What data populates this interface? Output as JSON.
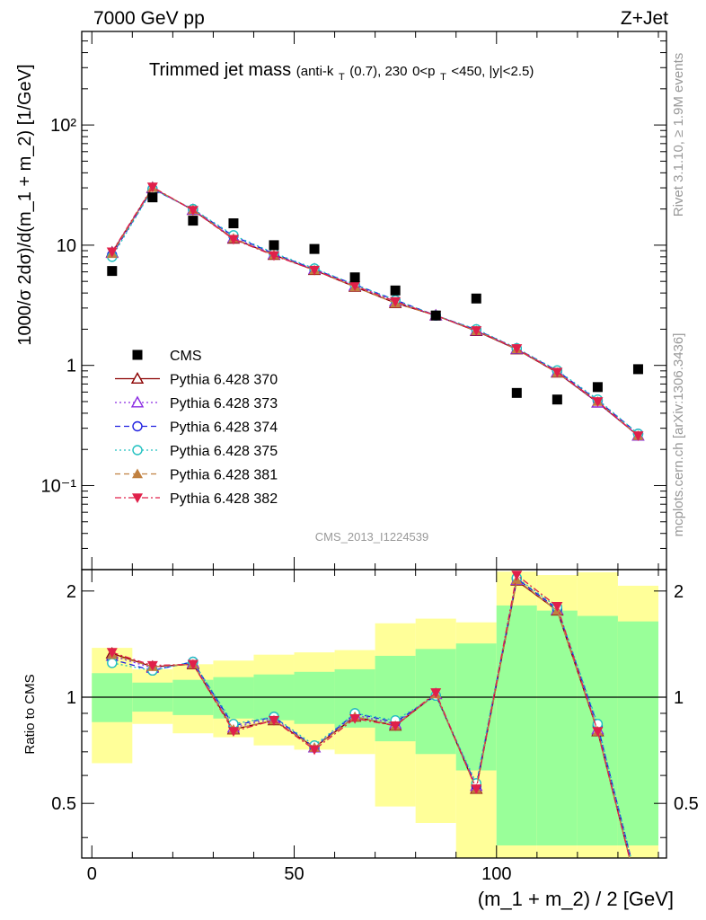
{
  "header": {
    "left": "7000 GeV pp",
    "right": "Z+Jet"
  },
  "top_panel": {
    "title_main": "Trimmed jet mass",
    "title_sub_pre": "(anti-k",
    "title_sub_sub1": "T",
    "title_sub_mid": "(0.7), 230",
    "title_sub_mid2": "0<p",
    "title_sub_sub2": "T",
    "title_sub_post": "<450, |y|<2.5)",
    "ylabel": "1000/σ 2dσ)/d(m_1 + m_2) [1/GeV]",
    "analysis_id": "CMS_2013_I1224539"
  },
  "side_labels": {
    "rivet": "Rivet 3.1.10, ≥ 1.9M events",
    "mcplots": "mcplots.cern.ch [arXiv:1306.3436]"
  },
  "ratio_panel": {
    "ylabel": "Ratio to CMS"
  },
  "x_axis": {
    "label": "(m_1 + m_2) / 2 [GeV]"
  },
  "chart_data": [
    {
      "type": "scatter",
      "log_y": true,
      "ylim": [
        0.02,
        600
      ],
      "xlim": [
        -2.5,
        142
      ],
      "x_ticks": [
        0,
        50,
        100
      ],
      "y_ticks": [
        {
          "value": 0.1,
          "label": "10⁻¹"
        },
        {
          "value": 1,
          "label": "1"
        },
        {
          "value": 10,
          "label": "10"
        },
        {
          "value": 100,
          "label": "10²"
        }
      ],
      "x": [
        5,
        15,
        25,
        35,
        45,
        55,
        65,
        75,
        85,
        95,
        105,
        115,
        125,
        135
      ],
      "legend_position": "bottom-left",
      "series": [
        {
          "name": "CMS",
          "marker": "square",
          "line": "none",
          "color": "#000000",
          "values": [
            6.1,
            25.0,
            16.0,
            15.2,
            10.0,
            9.3,
            5.4,
            4.2,
            2.6,
            3.6,
            0.59,
            0.52,
            0.66,
            0.93
          ]
        },
        {
          "name": "Pythia 6.428 370",
          "marker": "triangle-open",
          "line": "solid",
          "color": "#8b0000",
          "values": [
            8.7,
            30.0,
            19.6,
            11.3,
            8.3,
            6.2,
            4.5,
            3.3,
            2.6,
            1.93,
            1.36,
            0.87,
            0.49,
            0.26
          ]
        },
        {
          "name": "Pythia 6.428 373",
          "marker": "triangle-open",
          "line": "dotted",
          "color": "#8a2be2",
          "values": [
            8.6,
            29.7,
            19.7,
            11.5,
            8.4,
            6.3,
            4.6,
            3.4,
            2.6,
            1.95,
            1.37,
            0.88,
            0.49,
            0.26
          ]
        },
        {
          "name": "Pythia 6.428 374",
          "marker": "circle-open",
          "line": "dashed",
          "color": "#2020e0",
          "values": [
            8.3,
            29.4,
            19.8,
            11.9,
            8.5,
            6.3,
            4.7,
            3.5,
            2.6,
            1.98,
            1.38,
            0.9,
            0.51,
            0.27
          ]
        },
        {
          "name": "Pythia 6.428 375",
          "marker": "circle-open",
          "line": "dotted",
          "color": "#20c0c0",
          "values": [
            8.0,
            29.2,
            20.0,
            12.1,
            8.6,
            6.4,
            4.7,
            3.5,
            2.6,
            2.0,
            1.39,
            0.91,
            0.52,
            0.27
          ]
        },
        {
          "name": "Pythia 6.428 381",
          "marker": "triangle-filled",
          "line": "dashed",
          "color": "#c08040",
          "values": [
            8.5,
            30.1,
            19.7,
            11.4,
            8.3,
            6.2,
            4.5,
            3.3,
            2.6,
            1.94,
            1.37,
            0.87,
            0.5,
            0.26
          ]
        },
        {
          "name": "Pythia 6.428 382",
          "marker": "triangle-down-filled",
          "line": "dashdot",
          "color": "#e0204a",
          "values": [
            8.8,
            30.5,
            19.5,
            11.2,
            8.2,
            6.2,
            4.6,
            3.4,
            2.6,
            1.95,
            1.38,
            0.88,
            0.5,
            0.26
          ]
        }
      ]
    },
    {
      "type": "line",
      "log_y": true,
      "ylim": [
        0.35,
        2.3
      ],
      "xlim": [
        -2.5,
        142
      ],
      "x_ticks": [
        0,
        50,
        100
      ],
      "y_ticks": [
        {
          "value": 0.5,
          "label": "0.5"
        },
        {
          "value": 1,
          "label": "1"
        },
        {
          "value": 2,
          "label": "2"
        }
      ],
      "reference_line": 1,
      "x": [
        5,
        15,
        25,
        35,
        45,
        55,
        65,
        75,
        85,
        95,
        105,
        115,
        125,
        135
      ],
      "bands": {
        "x_edges": [
          0,
          10,
          20,
          30,
          40,
          50,
          60,
          70,
          80,
          90,
          100,
          110,
          120,
          130,
          140
        ],
        "yellow_low": [
          0.65,
          0.84,
          0.79,
          0.77,
          0.73,
          0.71,
          0.69,
          0.49,
          0.44,
          0.28,
          0.22,
          0.22,
          0.22,
          0.22
        ],
        "yellow_high": [
          1.38,
          1.2,
          1.24,
          1.27,
          1.32,
          1.34,
          1.36,
          1.62,
          1.67,
          1.63,
          2.27,
          2.22,
          2.26,
          2.07
        ],
        "green_low": [
          0.85,
          0.91,
          0.89,
          0.87,
          0.86,
          0.84,
          0.82,
          0.75,
          0.69,
          0.62,
          0.38,
          0.38,
          0.38,
          0.38
        ],
        "green_high": [
          1.17,
          1.1,
          1.12,
          1.14,
          1.16,
          1.18,
          1.2,
          1.31,
          1.37,
          1.42,
          1.82,
          1.76,
          1.7,
          1.64
        ]
      },
      "series": [
        {
          "name": "Pythia 6.428 370",
          "values": [
            1.33,
            1.22,
            1.24,
            0.81,
            0.86,
            0.72,
            0.88,
            0.83,
            1.02,
            0.55,
            2.14,
            1.76,
            0.8,
            0.28
          ]
        },
        {
          "name": "Pythia 6.428 373",
          "values": [
            1.31,
            1.21,
            1.25,
            0.82,
            0.87,
            0.72,
            0.89,
            0.84,
            1.02,
            0.56,
            2.15,
            1.77,
            0.81,
            0.28
          ]
        },
        {
          "name": "Pythia 6.428 374",
          "values": [
            1.28,
            1.19,
            1.26,
            0.83,
            0.88,
            0.72,
            0.9,
            0.85,
            1.01,
            0.56,
            2.17,
            1.78,
            0.83,
            0.29
          ]
        },
        {
          "name": "Pythia 6.428 375",
          "values": [
            1.25,
            1.19,
            1.26,
            0.84,
            0.88,
            0.73,
            0.9,
            0.86,
            1.01,
            0.57,
            2.18,
            1.8,
            0.84,
            0.29
          ]
        },
        {
          "name": "Pythia 6.428 381",
          "values": [
            1.32,
            1.22,
            1.24,
            0.81,
            0.86,
            0.72,
            0.88,
            0.83,
            1.02,
            0.55,
            2.15,
            1.76,
            0.8,
            0.28
          ]
        },
        {
          "name": "Pythia 6.428 382",
          "values": [
            1.34,
            1.23,
            1.24,
            0.8,
            0.86,
            0.71,
            0.87,
            0.83,
            1.03,
            0.55,
            2.22,
            1.81,
            0.8,
            0.28
          ]
        }
      ]
    }
  ]
}
